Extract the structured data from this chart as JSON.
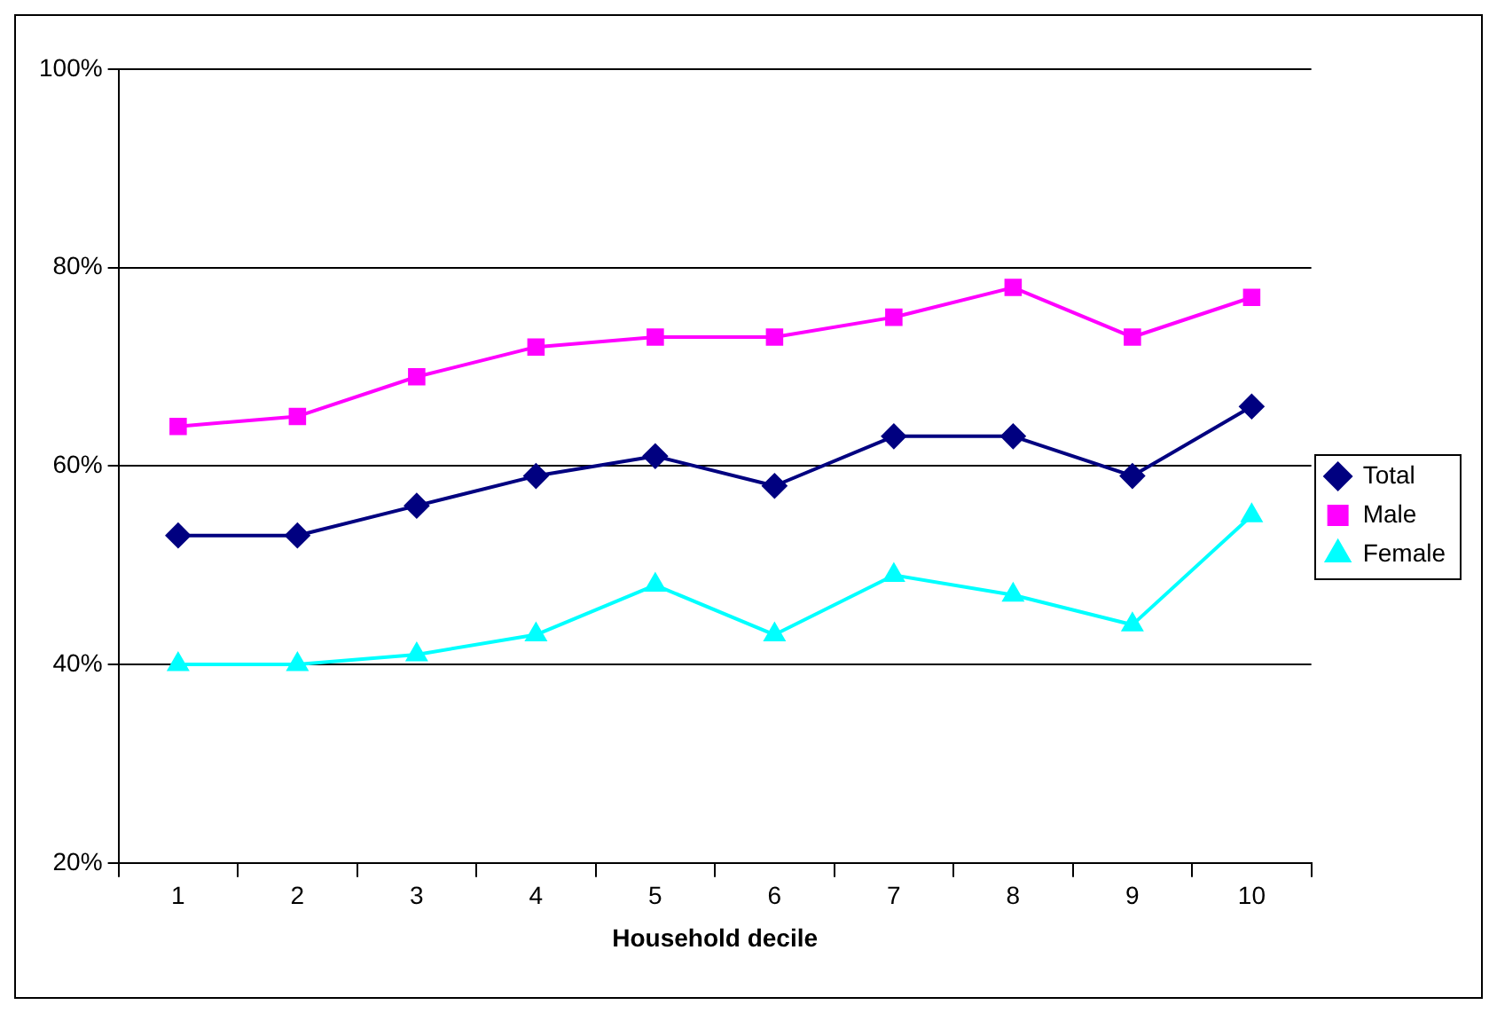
{
  "chart_data": {
    "type": "line",
    "xlabel": "Household decile",
    "categories": [
      "1",
      "2",
      "3",
      "4",
      "5",
      "6",
      "7",
      "8",
      "9",
      "10"
    ],
    "series": [
      {
        "name": "Total",
        "color": "#000080",
        "marker": "diamond",
        "values": [
          53,
          53,
          56,
          59,
          61,
          58,
          63,
          63,
          59,
          66
        ]
      },
      {
        "name": "Male",
        "color": "#ff00ff",
        "marker": "square",
        "values": [
          64,
          65,
          69,
          72,
          73,
          73,
          75,
          78,
          73,
          77
        ]
      },
      {
        "name": "Female",
        "color": "#00ffff",
        "marker": "triangle",
        "values": [
          40,
          40,
          41,
          43,
          48,
          43,
          49,
          47,
          44,
          55
        ]
      }
    ],
    "ylim": [
      20,
      100
    ],
    "yticks": [
      {
        "value": 20,
        "label": "20%"
      },
      {
        "value": 40,
        "label": "40%"
      },
      {
        "value": 60,
        "label": "60%"
      },
      {
        "value": 80,
        "label": "80%"
      },
      {
        "value": 100,
        "label": "100%"
      }
    ],
    "grid": "y",
    "legend": "right",
    "line_style": "solid"
  }
}
